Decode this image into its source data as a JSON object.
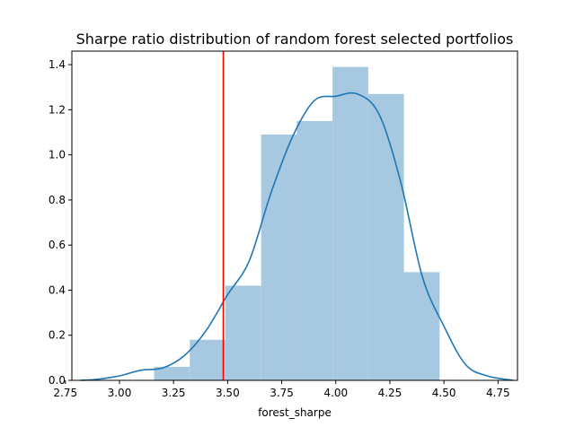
{
  "chart_data": {
    "type": "bar",
    "title": "Sharpe ratio distribution of random forest selected portfolios",
    "xlabel": "forest_sharpe",
    "ylabel": "",
    "xlim": [
      2.78,
      4.84
    ],
    "ylim": [
      0,
      1.46
    ],
    "x_ticks": [
      2.75,
      3.0,
      3.25,
      3.5,
      3.75,
      4.0,
      4.25,
      4.5,
      4.75
    ],
    "x_tick_labels": [
      "2.75",
      "3.00",
      "3.25",
      "3.50",
      "3.75",
      "4.00",
      "4.25",
      "4.50",
      "4.75"
    ],
    "y_ticks": [
      0.0,
      0.2,
      0.4,
      0.6,
      0.8,
      1.0,
      1.2,
      1.4
    ],
    "y_tick_labels": [
      "0.0",
      "0.2",
      "0.4",
      "0.6",
      "0.8",
      "1.0",
      "1.2",
      "1.4"
    ],
    "grid": false,
    "histogram": {
      "bins": [
        {
          "x0": 3.16,
          "x1": 3.325,
          "height": 0.06
        },
        {
          "x0": 3.325,
          "x1": 3.49,
          "height": 0.18
        },
        {
          "x0": 3.49,
          "x1": 3.655,
          "height": 0.42
        },
        {
          "x0": 3.655,
          "x1": 3.82,
          "height": 1.09
        },
        {
          "x0": 3.82,
          "x1": 3.985,
          "height": 1.15
        },
        {
          "x0": 3.985,
          "x1": 4.15,
          "height": 1.39
        },
        {
          "x0": 4.15,
          "x1": 4.315,
          "height": 1.27
        },
        {
          "x0": 4.315,
          "x1": 4.48,
          "height": 0.48
        }
      ],
      "color": "#a6c8e0"
    },
    "kde": {
      "color": "#1f77b4",
      "x": [
        2.82,
        2.9,
        3.0,
        3.1,
        3.2,
        3.3,
        3.4,
        3.5,
        3.6,
        3.7,
        3.8,
        3.9,
        4.0,
        4.1,
        4.2,
        4.3,
        4.4,
        4.5,
        4.6,
        4.7,
        4.82
      ],
      "y": [
        0.0,
        0.005,
        0.02,
        0.045,
        0.055,
        0.11,
        0.22,
        0.38,
        0.53,
        0.83,
        1.08,
        1.24,
        1.26,
        1.27,
        1.18,
        0.88,
        0.46,
        0.24,
        0.07,
        0.02,
        0.0
      ]
    },
    "vline": {
      "x": 3.48,
      "color": "#ff0000"
    }
  }
}
